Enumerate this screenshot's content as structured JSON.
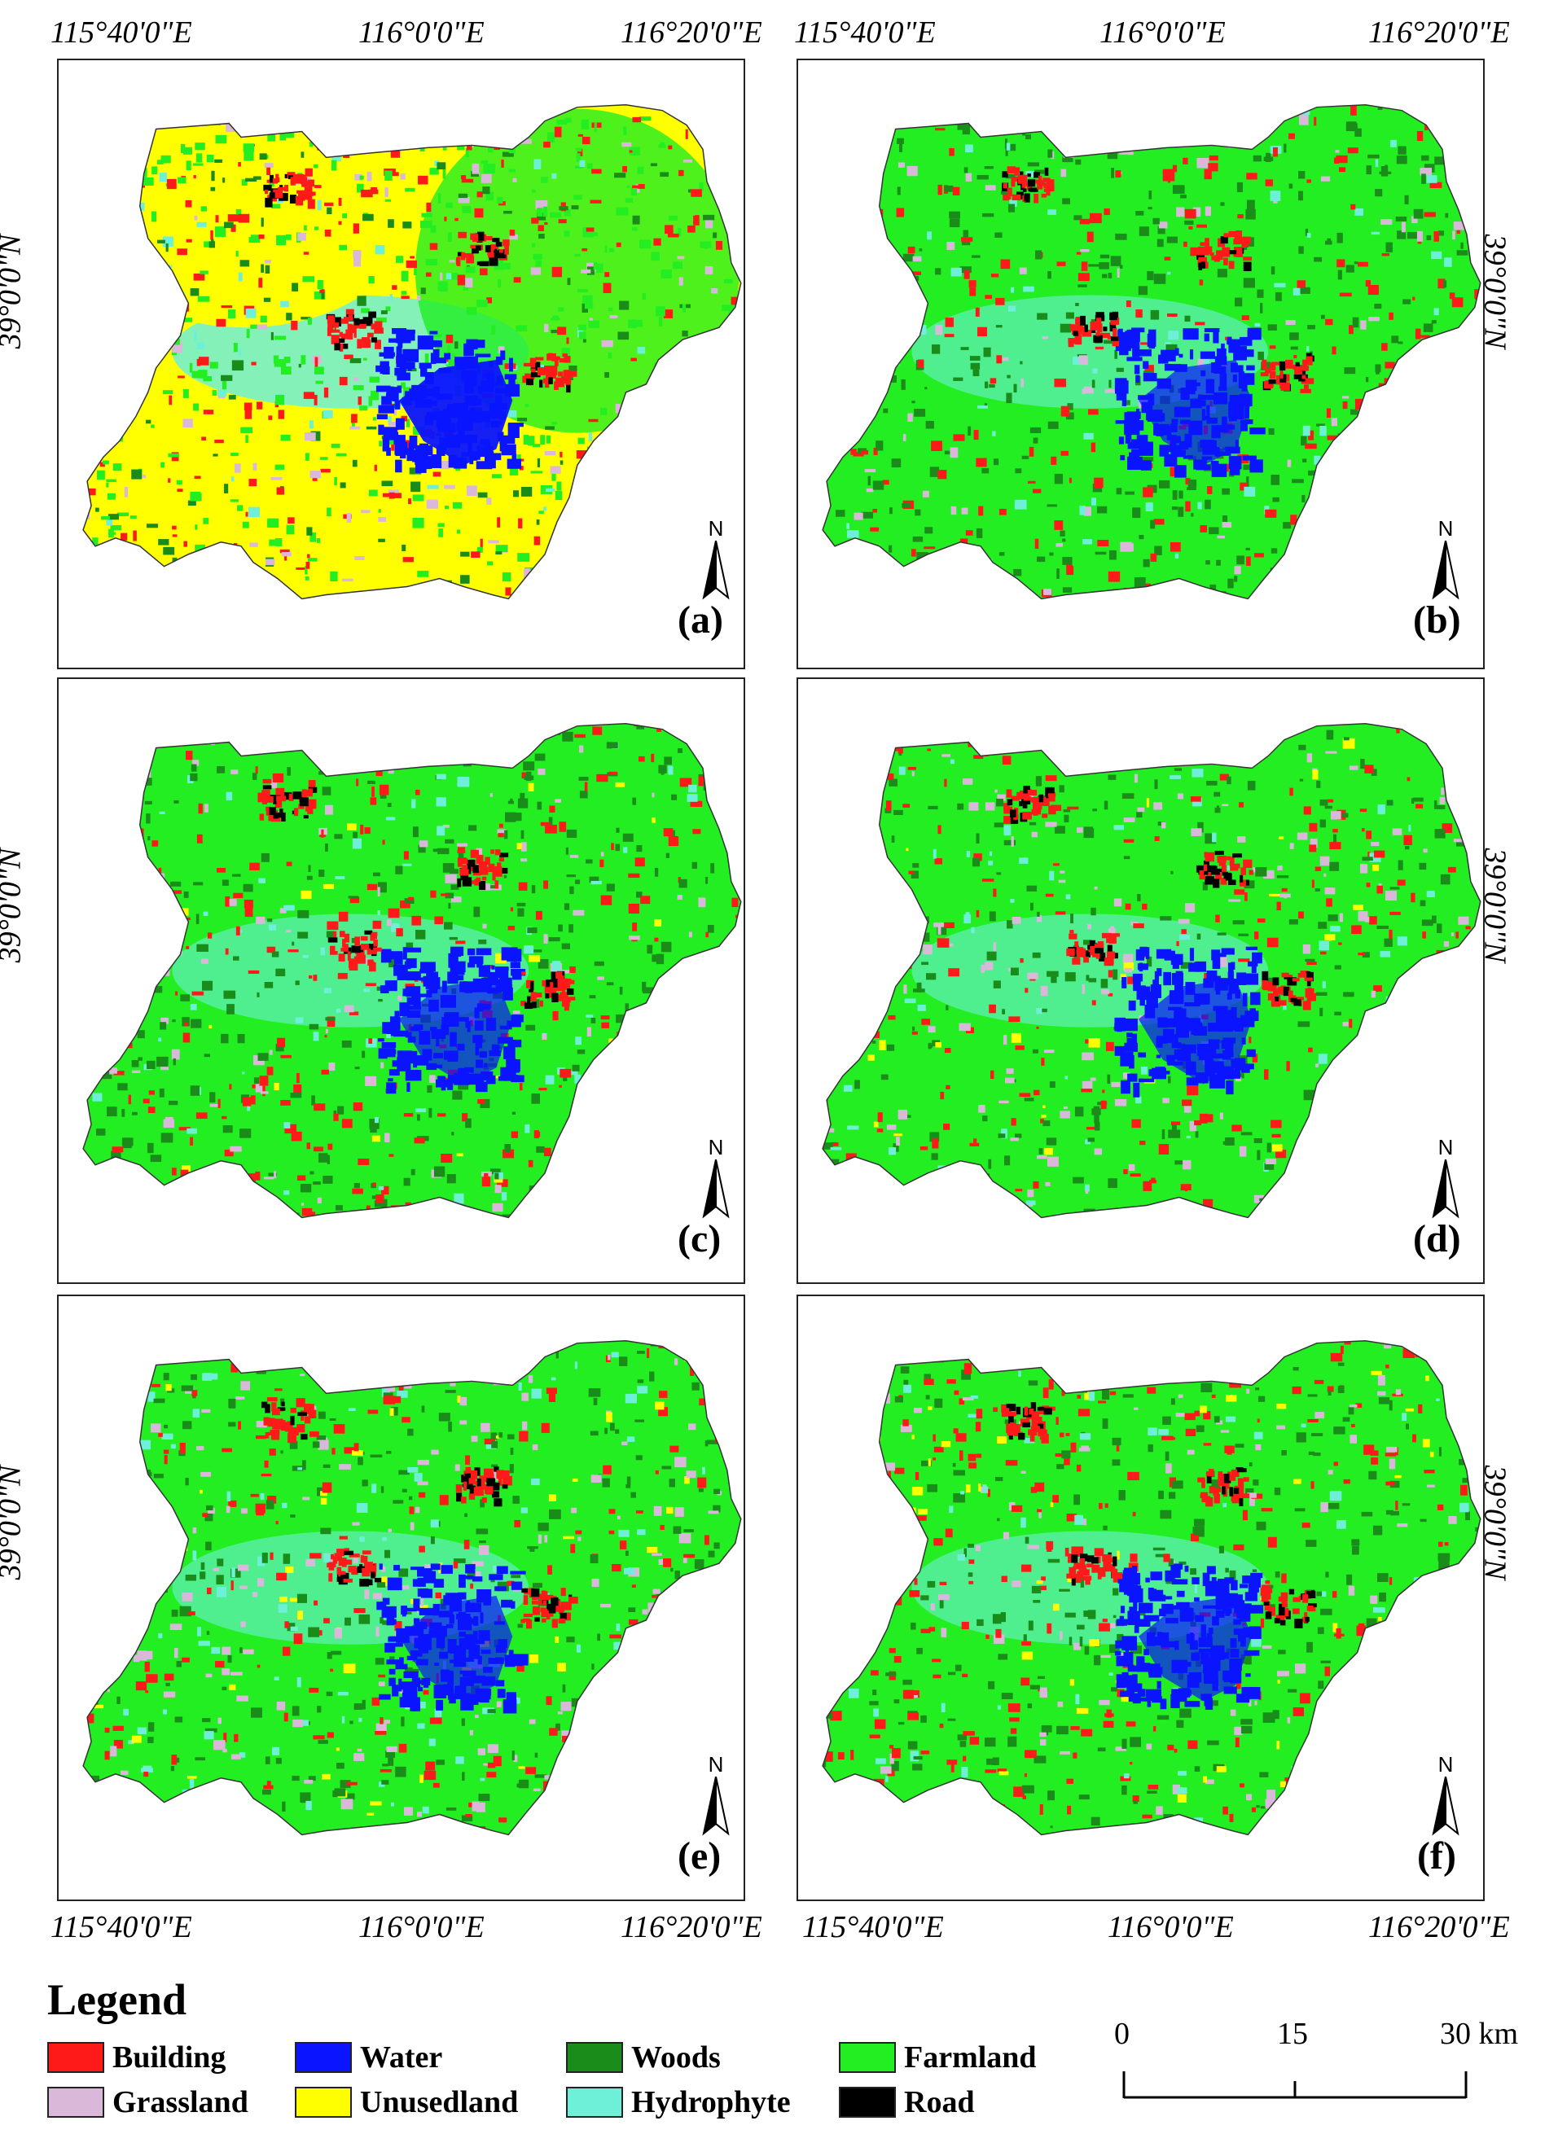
{
  "coords": {
    "top": [
      "115°40'0\"E",
      "116°0'0\"E",
      "116°20'0\"E",
      "115°40'0\"E",
      "116°0'0\"E",
      "116°20'0\"E"
    ],
    "bottom": [
      "115°40'0\"E",
      "116°0'0\"E",
      "116°20'0\"E",
      "115°40'0\"E",
      "116°0'0\"E",
      "116°20'0\"E"
    ],
    "lat": "39°0'0\"N"
  },
  "panels": [
    {
      "label": "(a)",
      "scheme": "a"
    },
    {
      "label": "(b)",
      "scheme": "b"
    },
    {
      "label": "(c)",
      "scheme": "c"
    },
    {
      "label": "(d)",
      "scheme": "d"
    },
    {
      "label": "(e)",
      "scheme": "e"
    },
    {
      "label": "(f)",
      "scheme": "f"
    }
  ],
  "north_letter": "N",
  "legend": {
    "title": "Legend",
    "items": [
      {
        "label": "Building",
        "color": "#ff1a1a"
      },
      {
        "label": "Water",
        "color": "#0a14ff"
      },
      {
        "label": "Woods",
        "color": "#1a8c1a"
      },
      {
        "label": "Farmland",
        "color": "#22ee22"
      },
      {
        "label": "Grassland",
        "color": "#d9b8d9"
      },
      {
        "label": "Unusedland",
        "color": "#ffff00"
      },
      {
        "label": "Hydrophyte",
        "color": "#6ef0d8"
      },
      {
        "label": "Road",
        "color": "#000000"
      }
    ]
  },
  "scale": {
    "labels": [
      "0",
      "15",
      "30 km"
    ]
  }
}
